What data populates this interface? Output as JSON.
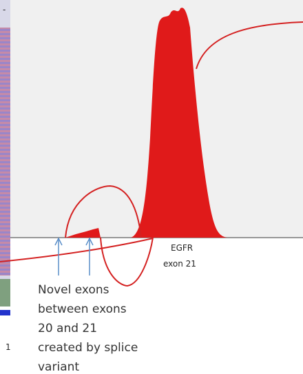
{
  "top_mark": "-",
  "exon_label": {
    "gene": "EGFR",
    "exon": "exon 21"
  },
  "annotation": [
    "Novel exons",
    "between exons",
    "20 and 21",
    "created by splice",
    "variant"
  ],
  "side_number": "1"
}
